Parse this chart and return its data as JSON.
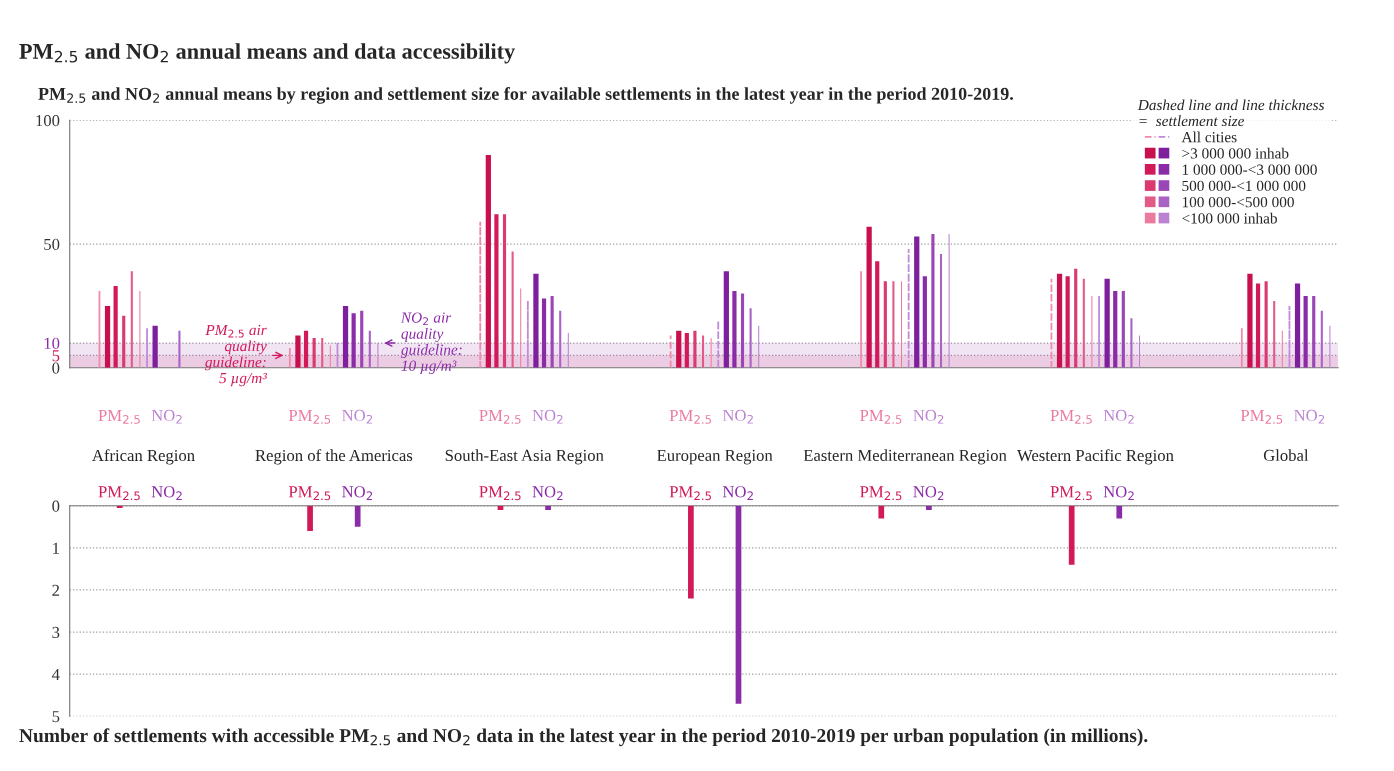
{
  "chart_data": [
    {
      "type": "bar",
      "title": "PM$_{2.5}$ and NO$_{2}$ annual means and data accessibility",
      "subtitle": "PM$_{2.5}$ and NO$_{2}$ annual means by region and settlement size for available settlements in the latest year in the period 2010-2019.",
      "legend_title": "Dashed line and line thickness\n=  settlement size",
      "categories": [
        "PM$_{2.5}$",
        "NO$_{2}$",
        null,
        null,
        "PM$_{2.5}$",
        "NO$_{2}$",
        null,
        null,
        "PM$_{2.5}$",
        "NO$_{2}$",
        null,
        null,
        "PM$_{2.5}$",
        "NO$_{2}$",
        null,
        null,
        "PM$_{2.5}$",
        "NO$_{2}$",
        null,
        null,
        "PM$_{2.5}$",
        "NO$_{2}$",
        null,
        null,
        "PM$_{2.5}$",
        "NO$_{2}$"
      ],
      "series": [
        {
          "name": "All cities",
          "line_style": "dashed",
          "colors": [
            "#f08aa8",
            "#c08ad8",
            null,
            null,
            "#f08aa8",
            "#c08ad8",
            null,
            null,
            "#f08aa8",
            "#c08ad8",
            null,
            null,
            "#f08aa8",
            "#c08ad8",
            null,
            null,
            "#f08aa8",
            "#c08ad8",
            null,
            null,
            "#f08aa8",
            "#c08ad8",
            null,
            null,
            "#f08aa8",
            "#c08ad8"
          ],
          "values": [
            31,
            16,
            null,
            null,
            8,
            10,
            null,
            null,
            59,
            27,
            null,
            null,
            13,
            19,
            null,
            null,
            39,
            48,
            null,
            null,
            36,
            29,
            null,
            null,
            16,
            25
          ]
        },
        {
          "name": ">3 000 000 inhab",
          "colors": [
            "#c8104f",
            "#7e1f9e",
            null,
            null,
            "#c8104f",
            "#7e1f9e",
            null,
            null,
            "#c8104f",
            "#7e1f9e",
            null,
            null,
            "#c8104f",
            "#7e1f9e",
            null,
            null,
            "#c8104f",
            "#7e1f9e",
            null,
            null,
            "#c8104f",
            "#7e1f9e",
            null,
            null,
            "#c8104f",
            "#7e1f9e"
          ],
          "values": [
            25,
            17,
            null,
            null,
            13,
            25,
            null,
            null,
            86,
            38,
            null,
            null,
            15,
            39,
            null,
            null,
            57,
            53,
            null,
            null,
            38,
            36,
            null,
            null,
            38,
            34
          ]
        },
        {
          "name": "1 000 000-<3 000 000",
          "colors": [
            "#d2195a",
            "#8a2ba8",
            null,
            null,
            "#d2195a",
            "#8a2ba8",
            null,
            null,
            "#d2195a",
            "#8a2ba8",
            null,
            null,
            "#d2195a",
            "#8a2ba8",
            null,
            null,
            "#d2195a",
            "#8a2ba8",
            null,
            null,
            "#d2195a",
            "#8a2ba8",
            null,
            null,
            "#d2195a",
            "#8a2ba8"
          ],
          "values": [
            33,
            null,
            null,
            null,
            15,
            22,
            null,
            null,
            62,
            28,
            null,
            null,
            14,
            31,
            null,
            null,
            43,
            37,
            null,
            null,
            37,
            31,
            null,
            null,
            34,
            29
          ]
        },
        {
          "name": "500 000-<1 000 000",
          "colors": [
            "#da3a6f",
            "#9a46b6",
            null,
            null,
            "#da3a6f",
            "#9a46b6",
            null,
            null,
            "#da3a6f",
            "#9a46b6",
            null,
            null,
            "#da3a6f",
            "#9a46b6",
            null,
            null,
            "#da3a6f",
            "#9a46b6",
            null,
            null,
            "#da3a6f",
            "#9a46b6",
            null,
            null,
            "#da3a6f",
            "#9a46b6"
          ],
          "values": [
            21,
            null,
            null,
            null,
            12,
            23,
            null,
            null,
            62,
            29,
            null,
            null,
            15,
            30,
            null,
            null,
            35,
            54,
            null,
            null,
            40,
            31,
            null,
            null,
            35,
            29
          ]
        },
        {
          "name": "100 000-<500 000",
          "colors": [
            "#e25a86",
            "#aa62c4",
            null,
            null,
            "#e25a86",
            "#aa62c4",
            null,
            null,
            "#e25a86",
            "#aa62c4",
            null,
            null,
            "#e25a86",
            "#aa62c4",
            null,
            null,
            "#e25a86",
            "#aa62c4",
            null,
            null,
            "#e25a86",
            "#aa62c4",
            null,
            null,
            "#e25a86",
            "#aa62c4"
          ],
          "values": [
            39,
            15,
            null,
            null,
            12,
            15,
            null,
            null,
            47,
            23,
            null,
            null,
            13,
            24,
            null,
            null,
            35,
            46,
            null,
            null,
            36,
            20,
            null,
            null,
            27,
            23
          ]
        },
        {
          "name": "<100 000 inhab",
          "colors": [
            "#ec7c9f",
            "#bb82d2",
            null,
            null,
            "#ec7c9f",
            "#bb82d2",
            null,
            null,
            "#ec7c9f",
            "#bb82d2",
            null,
            null,
            "#ec7c9f",
            "#bb82d2",
            null,
            null,
            "#ec7c9f",
            "#bb82d2",
            null,
            null,
            "#ec7c9f",
            "#bb82d2",
            null,
            null,
            "#ec7c9f",
            "#bb82d2"
          ],
          "values": [
            31,
            null,
            null,
            null,
            9,
            10,
            null,
            null,
            32,
            14,
            null,
            null,
            12,
            17,
            null,
            null,
            35,
            54,
            null,
            null,
            29,
            13,
            null,
            null,
            15,
            17
          ]
        }
      ],
      "ylim": [
        0,
        100
      ],
      "yticks": [
        0,
        5,
        10,
        50,
        100
      ],
      "grid": "y",
      "legend": "top right",
      "bands": [
        {
          "axis": "y",
          "from": 0,
          "to": 5,
          "color": "#d2195a",
          "label": "PM$_{2.5}$ air\nquality\nguideline:\n5 µg/m³"
        },
        {
          "axis": "y",
          "from": 0,
          "to": 10,
          "color": "#8a2ba8",
          "label": "NO$_{2}$ air\nquality\nguideline:\n10 µg/m³"
        }
      ],
      "annotations": [
        "African Region",
        "Region of the Americas",
        "South-East Asia Region",
        "European Region",
        "Eastern Mediterranean Region",
        "Western Pacific Region",
        "Global"
      ]
    },
    {
      "type": "bar",
      "xlabel": "Number of settlements with accessible PM$_{2.5}$ and NO$_{2}$ data in the latest year in the period 2010-2019 per urban population (in millions).",
      "categories": [
        "PM$_{2.5}$",
        "NO$_{2}$",
        null,
        null,
        "PM$_{2.5}$",
        "NO$_{2}$",
        null,
        null,
        "PM$_{2.5}$",
        "NO$_{2}$",
        null,
        null,
        "PM$_{2.5}$",
        "NO$_{2}$",
        null,
        null,
        "PM$_{2.5}$",
        "NO$_{2}$",
        null,
        null,
        "PM$_{2.5}$",
        "NO$_{2}$"
      ],
      "values": [
        0.05,
        null,
        null,
        null,
        0.6,
        0.5,
        null,
        null,
        0.1,
        0.1,
        null,
        null,
        2.2,
        4.7,
        null,
        null,
        0.3,
        0.1,
        null,
        null,
        1.4,
        0.3
      ],
      "colors": [
        "#d2195a",
        "#8a2ba8",
        null,
        null,
        "#d2195a",
        "#8a2ba8",
        null,
        null,
        "#d2195a",
        "#8a2ba8",
        null,
        null,
        "#d2195a",
        "#8a2ba8",
        null,
        null,
        "#d2195a",
        "#8a2ba8",
        null,
        null,
        "#d2195a",
        "#8a2ba8"
      ],
      "ylim": [
        5,
        0
      ],
      "yticks": [
        0,
        1,
        2,
        3,
        4,
        5
      ],
      "grid": "y"
    }
  ]
}
